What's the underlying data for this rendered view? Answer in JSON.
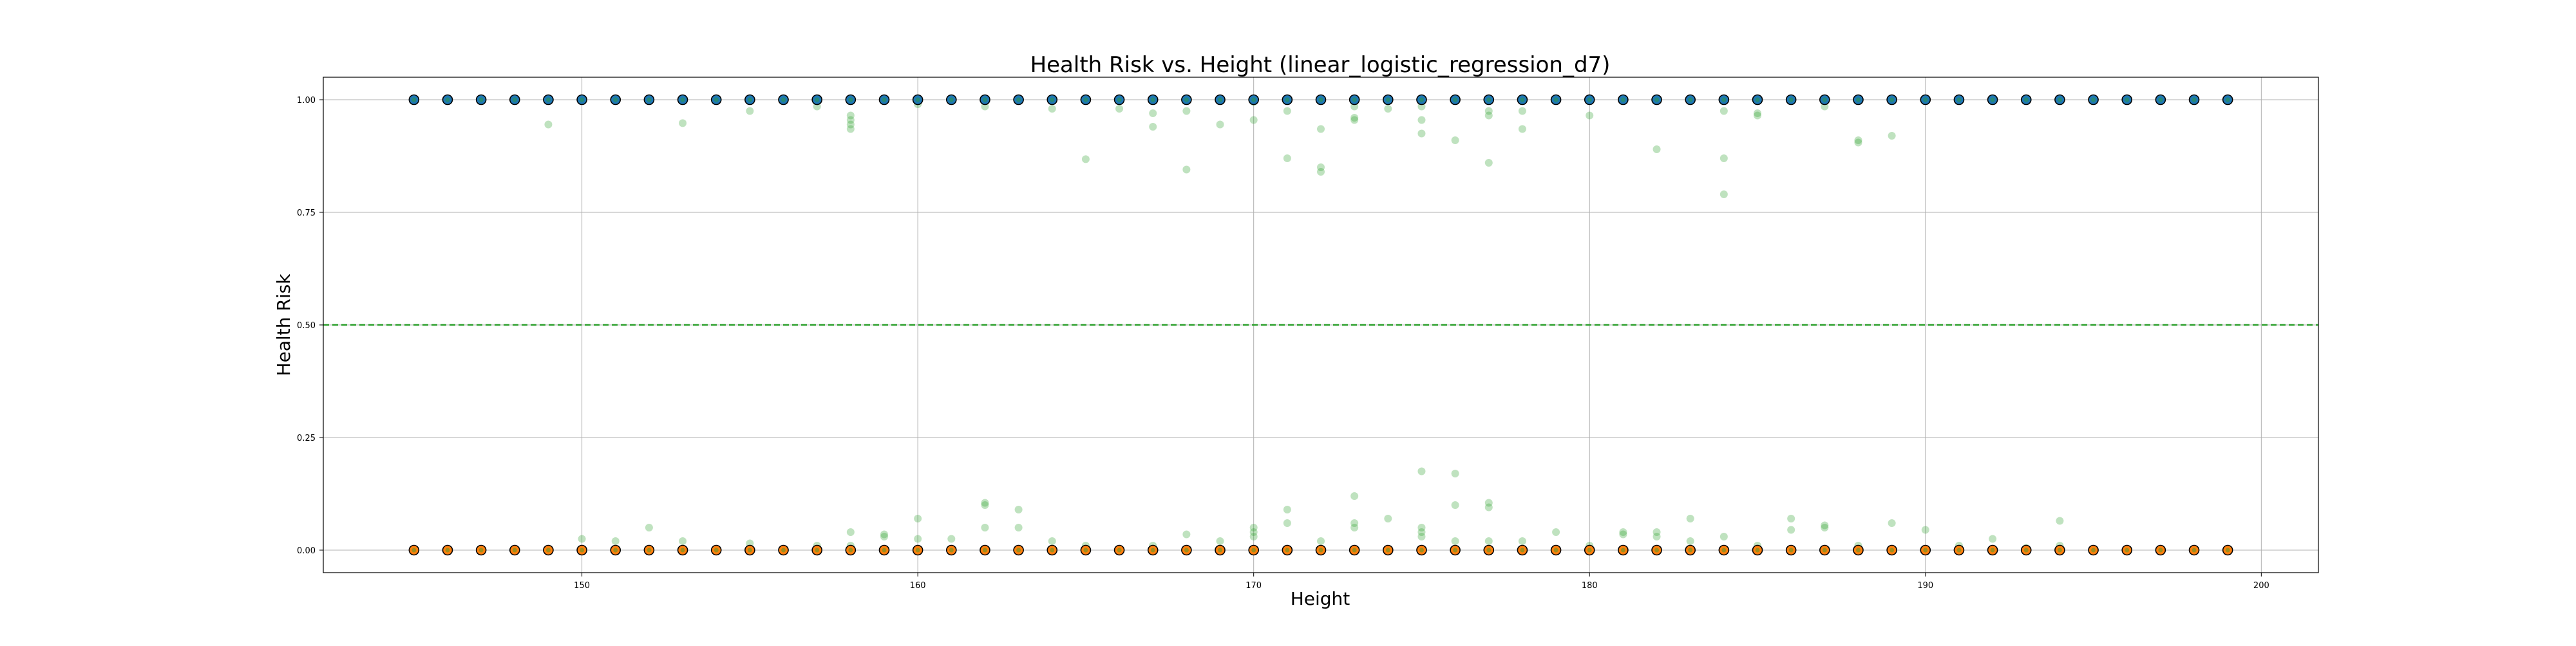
{
  "chart_data": {
    "type": "scatter",
    "title": "Health Risk vs. Height (linear_logistic_regression_d7)",
    "xlabel": "Height",
    "ylabel": "Health Risk",
    "xlim": [
      142.3,
      201.7
    ],
    "ylim": [
      -0.05,
      1.05
    ],
    "xticks": [
      150,
      160,
      170,
      180,
      190,
      200
    ],
    "yticks": [
      0.0,
      0.25,
      0.5,
      0.75,
      1.0
    ],
    "ytick_labels": [
      "0.00",
      "0.25",
      "0.50",
      "0.75",
      "1.00"
    ],
    "grid": true,
    "threshold": {
      "y": 0.5,
      "style": "dashed",
      "color": "#2ca02c"
    },
    "colors": {
      "class1": "#1f77b4",
      "class0": "#ff7f0e",
      "predicted": "#2ca02c",
      "edge": "#000000"
    },
    "series": [
      {
        "marker": "circle",
        "role": "actual-class-1",
        "x": [
          145,
          146,
          147,
          148,
          149,
          150,
          151,
          152,
          153,
          154,
          155,
          156,
          157,
          158,
          159,
          160,
          161,
          162,
          163,
          164,
          165,
          166,
          167,
          168,
          169,
          170,
          171,
          172,
          173,
          174,
          175,
          176,
          177,
          178,
          179,
          180,
          181,
          182,
          183,
          184,
          185,
          186,
          187,
          188,
          189,
          190,
          191,
          192,
          193,
          194,
          195,
          196,
          197,
          198,
          199
        ],
        "y": 1.0
      },
      {
        "marker": "circle",
        "role": "actual-class-0",
        "x": [
          145,
          146,
          147,
          148,
          149,
          150,
          151,
          152,
          153,
          154,
          155,
          156,
          157,
          158,
          159,
          160,
          161,
          162,
          163,
          164,
          165,
          166,
          167,
          168,
          169,
          170,
          171,
          172,
          173,
          174,
          175,
          176,
          177,
          178,
          179,
          180,
          181,
          182,
          183,
          184,
          185,
          186,
          187,
          188,
          189,
          190,
          191,
          192,
          193,
          194,
          195,
          196,
          197,
          198,
          199
        ],
        "y": 0.0
      },
      {
        "marker": "circle",
        "role": "predicted-probability",
        "points": [
          [
            149,
            0.945
          ],
          [
            153,
            0.948
          ],
          [
            155,
            0.975
          ],
          [
            157,
            0.985
          ],
          [
            158,
            0.965
          ],
          [
            158,
            0.955
          ],
          [
            158,
            0.945
          ],
          [
            158,
            0.935
          ],
          [
            160,
            0.99
          ],
          [
            162,
            0.985
          ],
          [
            164,
            0.98
          ],
          [
            165,
            0.868
          ],
          [
            166,
            0.98
          ],
          [
            167,
            0.97
          ],
          [
            167,
            0.94
          ],
          [
            168,
            0.975
          ],
          [
            168,
            0.845
          ],
          [
            169,
            0.945
          ],
          [
            170,
            0.995
          ],
          [
            170,
            0.955
          ],
          [
            171,
            0.975
          ],
          [
            171,
            0.87
          ],
          [
            172,
            0.935
          ],
          [
            172,
            0.85
          ],
          [
            172,
            0.84
          ],
          [
            173,
            0.985
          ],
          [
            173,
            0.96
          ],
          [
            173,
            0.955
          ],
          [
            174,
            0.98
          ],
          [
            175,
            0.985
          ],
          [
            175,
            0.955
          ],
          [
            175,
            0.925
          ],
          [
            176,
            0.91
          ],
          [
            177,
            0.975
          ],
          [
            177,
            0.965
          ],
          [
            177,
            0.86
          ],
          [
            178,
            0.975
          ],
          [
            178,
            0.935
          ],
          [
            180,
            0.965
          ],
          [
            182,
            0.89
          ],
          [
            184,
            0.975
          ],
          [
            184,
            0.87
          ],
          [
            184,
            0.79
          ],
          [
            185,
            0.97
          ],
          [
            185,
            0.965
          ],
          [
            187,
            0.985
          ],
          [
            188,
            0.91
          ],
          [
            188,
            0.905
          ],
          [
            189,
            0.92
          ],
          [
            150,
            0.025
          ],
          [
            151,
            0.02
          ],
          [
            152,
            0.05
          ],
          [
            153,
            0.02
          ],
          [
            155,
            0.015
          ],
          [
            157,
            0.01
          ],
          [
            158,
            0.04
          ],
          [
            158,
            0.01
          ],
          [
            159,
            0.035
          ],
          [
            159,
            0.03
          ],
          [
            160,
            0.07
          ],
          [
            160,
            0.025
          ],
          [
            161,
            0.025
          ],
          [
            162,
            0.105
          ],
          [
            162,
            0.1
          ],
          [
            162,
            0.05
          ],
          [
            163,
            0.09
          ],
          [
            163,
            0.05
          ],
          [
            164,
            0.02
          ],
          [
            165,
            0.01
          ],
          [
            167,
            0.01
          ],
          [
            168,
            0.035
          ],
          [
            169,
            0.02
          ],
          [
            170,
            0.05
          ],
          [
            170,
            0.04
          ],
          [
            170,
            0.03
          ],
          [
            171,
            0.09
          ],
          [
            171,
            0.06
          ],
          [
            172,
            0.02
          ],
          [
            173,
            0.12
          ],
          [
            173,
            0.06
          ],
          [
            173,
            0.05
          ],
          [
            174,
            0.07
          ],
          [
            175,
            0.175
          ],
          [
            175,
            0.05
          ],
          [
            175,
            0.04
          ],
          [
            175,
            0.03
          ],
          [
            176,
            0.17
          ],
          [
            176,
            0.1
          ],
          [
            176,
            0.02
          ],
          [
            177,
            0.105
          ],
          [
            177,
            0.095
          ],
          [
            177,
            0.02
          ],
          [
            178,
            0.02
          ],
          [
            179,
            0.04
          ],
          [
            180,
            0.01
          ],
          [
            181,
            0.04
          ],
          [
            181,
            0.035
          ],
          [
            182,
            0.04
          ],
          [
            182,
            0.03
          ],
          [
            183,
            0.07
          ],
          [
            183,
            0.02
          ],
          [
            184,
            0.03
          ],
          [
            185,
            0.01
          ],
          [
            186,
            0.07
          ],
          [
            186,
            0.045
          ],
          [
            187,
            0.055
          ],
          [
            187,
            0.05
          ],
          [
            188,
            0.01
          ],
          [
            189,
            0.06
          ],
          [
            190,
            0.045
          ],
          [
            191,
            0.01
          ],
          [
            192,
            0.025
          ],
          [
            193,
            0.005
          ],
          [
            194,
            0.065
          ],
          [
            194,
            0.01
          ]
        ]
      }
    ]
  }
}
